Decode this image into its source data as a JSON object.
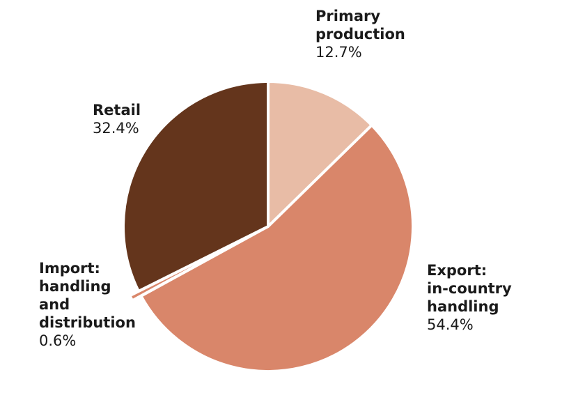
{
  "chart_data": {
    "type": "pie",
    "title": "",
    "start_angle_deg": 0,
    "direction": "clockwise",
    "slices": [
      {
        "label": "Primary production",
        "value": 12.7,
        "display": "12.7%",
        "color": "#e8bca6",
        "exploded": false
      },
      {
        "label": "Export: in-country handling",
        "value": 54.4,
        "display": "54.4%",
        "color": "#d9866a",
        "exploded": false
      },
      {
        "label": "Import: handling and distribution",
        "value": 0.6,
        "display": "0.6%",
        "color": "#d9866a",
        "exploded": true
      },
      {
        "label": "Retail",
        "value": 32.4,
        "display": "32.4%",
        "color": "#64351c",
        "exploded": false
      }
    ],
    "legend": "none",
    "data_labels": "outside"
  },
  "labels": {
    "primary": {
      "name": "Primary\nproduction",
      "pct": "12.7%"
    },
    "export": {
      "name": "Export:\nin-country\nhandling",
      "pct": "54.4%"
    },
    "import": {
      "name": "Import:\nhandling\nand\ndistribution",
      "pct": "0.6%"
    },
    "retail": {
      "name": "Retail",
      "pct": "32.4%"
    }
  }
}
